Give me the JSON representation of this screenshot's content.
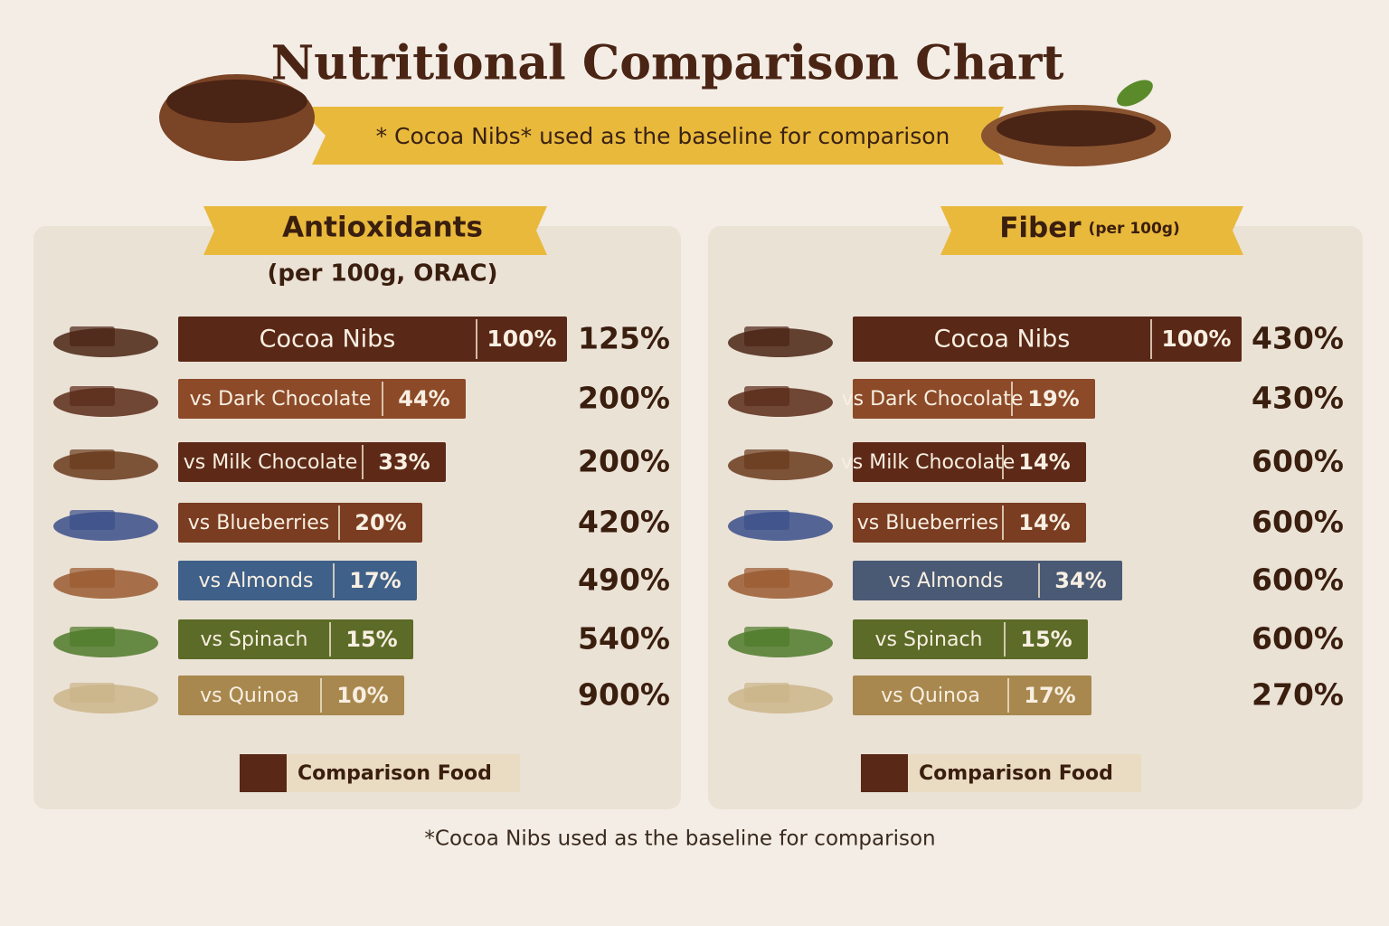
{
  "header": {
    "title": "Nutritional Comparison Chart",
    "banner": "* Cocoa Nibs* used as the baseline for comparison"
  },
  "chart_data": [
    {
      "type": "bar",
      "title": "Antioxidants",
      "subtitle": "(per 100g, ORAC)",
      "categories": [
        "Cocoa Nibs",
        "vs Dark Chocolate",
        "vs Milk Chocolate",
        "vs Blueberries",
        "vs Almonds",
        "vs Spinach",
        "vs Quinoa"
      ],
      "values": [
        100,
        44,
        33,
        20,
        17,
        15,
        10
      ],
      "value_labels": [
        "100%",
        "44%",
        "33%",
        "20%",
        "17%",
        "15%",
        "10%"
      ],
      "colors": [
        "#5a2816",
        "#8c4a28",
        "#5e2a17",
        "#7a3d21",
        "#3f6088",
        "#5c6b27",
        "#a8884e"
      ],
      "comparison_labels": [
        "125%",
        "200%",
        "200%",
        "420%",
        "490%",
        "540%",
        "900%"
      ],
      "legend": "Comparison Food"
    },
    {
      "type": "bar",
      "title": "Fiber",
      "subtitle": "(per 100g)",
      "categories": [
        "Cocoa Nibs",
        "vs Dark Chocolate",
        "vs Milk Chocolate",
        "vs Blueberries",
        "vs Almonds",
        "vs Spinach",
        "vs Quinoa"
      ],
      "values": [
        100,
        19,
        14,
        14,
        34,
        15,
        17
      ],
      "value_labels": [
        "100%",
        "19%",
        "14%",
        "14%",
        "34%",
        "15%",
        "17%"
      ],
      "colors": [
        "#5a2816",
        "#8c4a28",
        "#5e2a17",
        "#7a3d21",
        "#4a5a74",
        "#5c6b27",
        "#a8884e"
      ],
      "comparison_labels": [
        "430%",
        "430%",
        "600%",
        "600%",
        "600%",
        "600%",
        "270%"
      ],
      "legend": "Comparison Food"
    }
  ],
  "footnote": "*Cocoa Nibs used as the baseline for comparison"
}
